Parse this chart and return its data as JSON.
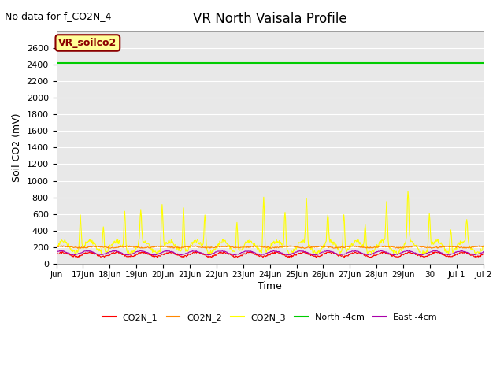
{
  "title": "VR North Vaisala Profile",
  "no_data_text": "No data for f_CO2N_4",
  "ylabel": "Soil CO2 (mV)",
  "xlabel": "Time",
  "ylim": [
    0,
    2800
  ],
  "yticks": [
    0,
    200,
    400,
    600,
    800,
    1000,
    1200,
    1400,
    1600,
    1800,
    2000,
    2200,
    2400,
    2600
  ],
  "plot_bg_color": "#e8e8e8",
  "annotation_text": "VR_soilco2",
  "north_4cm_value": 2420,
  "colors": {
    "CO2N_1": "#ff0000",
    "CO2N_2": "#ff8800",
    "CO2N_3": "#ffff00",
    "North_4cm": "#00cc00",
    "East_4cm": "#aa00aa"
  },
  "legend_entries": [
    "CO2N_1",
    "CO2N_2",
    "CO2N_3",
    "North -4cm",
    "East -4cm"
  ],
  "x_tick_positions": [
    0,
    1,
    2,
    3,
    4,
    5,
    6,
    7,
    8,
    9,
    10,
    11,
    12,
    13,
    14,
    15,
    16
  ],
  "x_tick_labels": [
    "Jun",
    "17Jun",
    "18Jun",
    "19Jun",
    "20Jun",
    "21Jun",
    "22Jun",
    "23Jun",
    "24Jun",
    "25Jun",
    "26Jun",
    "27Jun",
    "28Jun",
    "29Jun",
    "30",
    "Jul 1",
    "Jul 2"
  ]
}
